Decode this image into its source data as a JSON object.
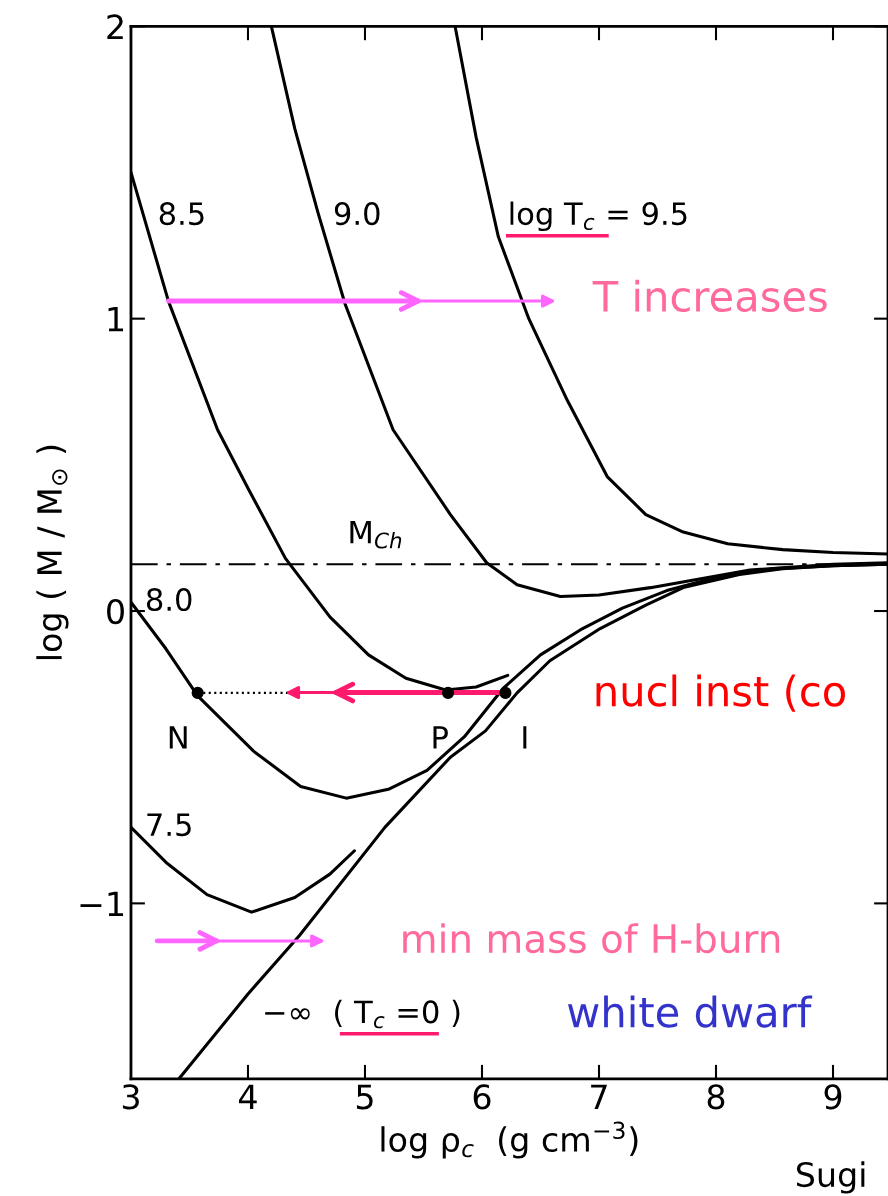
{
  "chart_data": {
    "type": "line",
    "xlabel": "log ρ$_{c}$  (g cm$^{−3}$)",
    "ylabel": "log ( M / M$_{⊙}$ )",
    "xlim": [
      3,
      9.47
    ],
    "ylim": [
      -1.6,
      2
    ],
    "xticks": [
      3,
      4,
      5,
      6,
      7,
      8,
      9
    ],
    "yticks": [
      -1,
      0,
      1,
      2
    ],
    "line_style": "solid",
    "marker": "none",
    "series": [
      {
        "name": "log T$_{c}$ = 9.5",
        "color": "#000000",
        "x": [
          5.77,
          5.95,
          6.14,
          6.4,
          6.73,
          7.07,
          7.4,
          7.72,
          8.1,
          8.57,
          9.0,
          9.47
        ],
        "values": [
          2.0,
          1.62,
          1.28,
          1.0,
          0.72,
          0.46,
          0.33,
          0.27,
          0.23,
          0.21,
          0.2,
          0.195
        ]
      },
      {
        "name": "9.0",
        "color": "#000000",
        "x": [
          4.2,
          4.4,
          4.6,
          4.83,
          5.24,
          5.73,
          6.04,
          6.3,
          6.67,
          7.0,
          7.44,
          8.29,
          9.0,
          9.47
        ],
        "values": [
          2.0,
          1.65,
          1.36,
          1.05,
          0.62,
          0.33,
          0.165,
          0.09,
          0.05,
          0.055,
          0.08,
          0.14,
          0.16,
          0.165
        ]
      },
      {
        "name": "8.5",
        "color": "#000000",
        "x": [
          3.0,
          3.32,
          3.74,
          4.0,
          4.32,
          4.7,
          5.03,
          5.35,
          5.69,
          5.95,
          6.22
        ],
        "values": [
          1.5,
          1.06,
          0.62,
          0.42,
          0.18,
          -0.02,
          -0.15,
          -0.23,
          -0.27,
          -0.26,
          -0.22
        ]
      },
      {
        "name": "8.0",
        "color": "#000000",
        "x": [
          3.0,
          3.3,
          3.57,
          4.05,
          4.45,
          4.84,
          5.2,
          5.53,
          5.85,
          6.18,
          6.5,
          6.86,
          7.2,
          7.58,
          8.0,
          8.5,
          9.0,
          9.47
        ],
        "values": [
          0.03,
          -0.13,
          -0.29,
          -0.48,
          -0.6,
          -0.64,
          -0.61,
          -0.545,
          -0.43,
          -0.265,
          -0.15,
          -0.06,
          0.01,
          0.07,
          0.115,
          0.145,
          0.155,
          0.16
        ]
      },
      {
        "name": "7.5",
        "color": "#000000",
        "x": [
          3.0,
          3.3,
          3.65,
          4.03,
          4.4,
          4.7,
          4.91
        ],
        "values": [
          -0.74,
          -0.86,
          -0.97,
          -1.03,
          -0.98,
          -0.9,
          -0.82
        ]
      },
      {
        "color": "#000000",
        "x": [
          3.41,
          4.0,
          4.44,
          5.17,
          5.73,
          6.03,
          6.3,
          6.58,
          7.01,
          7.4,
          7.72,
          8.2,
          8.57,
          9.0,
          9.47
        ],
        "values": [
          -1.6,
          -1.31,
          -1.11,
          -0.74,
          -0.5,
          -0.41,
          -0.28,
          -0.17,
          -0.06,
          0.02,
          0.08,
          0.125,
          0.145,
          0.155,
          0.16
        ]
      },
      {
        "color": "#000000",
        "line_style": "dotted",
        "x": [
          3.57,
          6.2
        ],
        "values": [
          -0.28,
          -0.28
        ]
      },
      {
        "type": "scatter",
        "marker": "circle",
        "color": "#000000",
        "x": [
          3.57,
          5.71,
          6.2
        ],
        "values": [
          -0.28,
          -0.28,
          -0.28
        ]
      }
    ],
    "ref_lines": [
      {
        "axis": "y",
        "value": 0.16,
        "label": "M$_{Ch}$",
        "line_style": "dashdot",
        "color": "#000000"
      }
    ],
    "annotations": [
      {
        "text": "N",
        "x": 3.57,
        "y": -0.28
      },
      {
        "text": "P",
        "x": 5.71,
        "y": -0.28
      },
      {
        "text": "I",
        "x": 6.2,
        "y": -0.28
      },
      "−∞  ( T$_{c}$ =0 )",
      "T increases",
      "nucl inst (co",
      "min mass of H-burn",
      "white dwarf",
      "Sugi"
    ]
  }
}
